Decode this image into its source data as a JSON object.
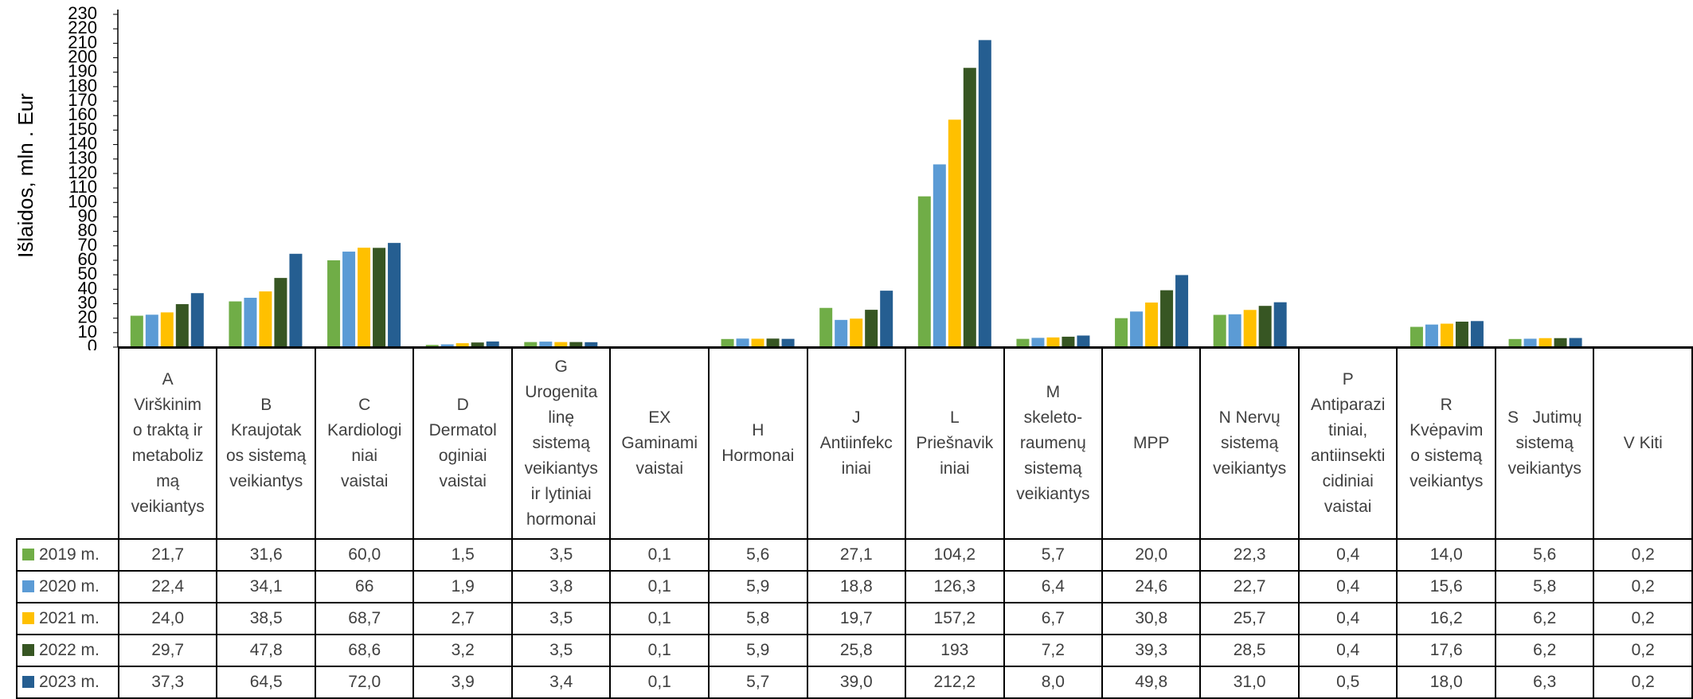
{
  "chart_data": {
    "type": "bar",
    "ylabel": "Išlaidos, mln . Eur",
    "ylim": [
      0,
      230
    ],
    "ytick_step": 10,
    "categories": [
      "A Virškinimo traktą ir metabolizmą veikiantys",
      "B Kraujotakos sistemą veikiantys",
      "C Kardiologiniai vaistai",
      "D Dermatologiniai vaistai",
      "G Urogenitalinę sistemą veikiantys ir lytiniai hormonai",
      "EX Gaminami vaistai",
      "H Hormonai",
      "J Antiinfekciniai",
      "L Priešnavikiniai",
      "M skeleto-raumenų sistemą veikiantys",
      "MPP",
      "N Nervų sistemą veikiantys",
      "P Antiparazitiniai, antiinsekticidiniai vaistai",
      "R Kvėpavimo sistemą veikiantys",
      "S Jutimų sistemą veikiantys",
      "V Kiti"
    ],
    "category_lines": [
      [
        "A",
        "Virškinim",
        "o traktą ir",
        "metaboliz",
        "mą",
        "veikiantys"
      ],
      [
        "B",
        "Kraujotak",
        "os sistemą",
        "veikiantys"
      ],
      [
        "C",
        "Kardiologi",
        "niai",
        "vaistai"
      ],
      [
        "D",
        "Dermatol",
        "oginiai",
        "vaistai"
      ],
      [
        "G",
        "Urogenita",
        "linę",
        "sistemą",
        "veikiantys",
        "ir lytiniai",
        "hormonai"
      ],
      [
        "EX",
        "Gaminami",
        "vaistai"
      ],
      [
        "H",
        "Hormonai"
      ],
      [
        "J",
        "Antiinfekc",
        "iniai"
      ],
      [
        "L",
        "Priešnavik",
        "iniai"
      ],
      [
        "M",
        "skeleto-",
        "raumenų",
        "sistemą",
        "veikiantys"
      ],
      [
        "MPP"
      ],
      [
        "N Nervų",
        "sistemą",
        "veikiantys"
      ],
      [
        "P",
        "Antiparazi",
        "tiniai,",
        "antiinsekti",
        "cidiniai",
        "vaistai"
      ],
      [
        "R",
        "Kvėpavim",
        "o sistemą",
        "veikiantys"
      ],
      [
        "S   Jutimų",
        "sistemą",
        "veikiantys"
      ],
      [
        "V Kiti"
      ]
    ],
    "series": [
      {
        "name": "2019 m.",
        "color": "#70ad47",
        "values": [
          21.7,
          31.6,
          60.0,
          1.5,
          3.5,
          0.1,
          5.6,
          27.1,
          104.2,
          5.7,
          20.0,
          22.3,
          0.4,
          14.0,
          5.6,
          0.2
        ],
        "labels": [
          "21,7",
          "31,6",
          "60,0",
          "1,5",
          "3,5",
          "0,1",
          "5,6",
          "27,1",
          "104,2",
          "5,7",
          "20,0",
          "22,3",
          "0,4",
          "14,0",
          "5,6",
          "0,2"
        ]
      },
      {
        "name": "2020 m.",
        "color": "#5b9bd5",
        "values": [
          22.4,
          34.1,
          66,
          1.9,
          3.8,
          0.1,
          5.9,
          18.8,
          126.3,
          6.4,
          24.6,
          22.7,
          0.4,
          15.6,
          5.8,
          0.2
        ],
        "labels": [
          "22,4",
          "34,1",
          "66",
          "1,9",
          "3,8",
          "0,1",
          "5,9",
          "18,8",
          "126,3",
          "6,4",
          "24,6",
          "22,7",
          "0,4",
          "15,6",
          "5,8",
          "0,2"
        ]
      },
      {
        "name": "2021 m.",
        "color": "#ffc000",
        "values": [
          24.0,
          38.5,
          68.7,
          2.7,
          3.5,
          0.1,
          5.8,
          19.7,
          157.2,
          6.7,
          30.8,
          25.7,
          0.4,
          16.2,
          6.2,
          0.2
        ],
        "labels": [
          "24,0",
          "38,5",
          "68,7",
          "2,7",
          "3,5",
          "0,1",
          "5,8",
          "19,7",
          "157,2",
          "6,7",
          "30,8",
          "25,7",
          "0,4",
          "16,2",
          "6,2",
          "0,2"
        ]
      },
      {
        "name": "2022 m.",
        "color": "#375623",
        "values": [
          29.7,
          47.8,
          68.6,
          3.2,
          3.5,
          0.1,
          5.9,
          25.8,
          193,
          7.2,
          39.3,
          28.5,
          0.4,
          17.6,
          6.2,
          0.2
        ],
        "labels": [
          "29,7",
          "47,8",
          "68,6",
          "3,2",
          "3,5",
          "0,1",
          "5,9",
          "25,8",
          "193",
          "7,2",
          "39,3",
          "28,5",
          "0,4",
          "17,6",
          "6,2",
          "0,2"
        ]
      },
      {
        "name": "2023 m.",
        "color": "#255e91",
        "values": [
          37.3,
          64.5,
          72.0,
          3.9,
          3.4,
          0.1,
          5.7,
          39.0,
          212.2,
          8.0,
          49.8,
          31.0,
          0.5,
          18.0,
          6.3,
          0.2
        ],
        "labels": [
          "37,3",
          "64,5",
          "72,0",
          "3,9",
          "3,4",
          "0,1",
          "5,7",
          "39,0",
          "212,2",
          "8,0",
          "49,8",
          "31,0",
          "0,5",
          "18,0",
          "6,3",
          "0,2"
        ]
      }
    ],
    "grid": false,
    "legend": "data-table"
  }
}
